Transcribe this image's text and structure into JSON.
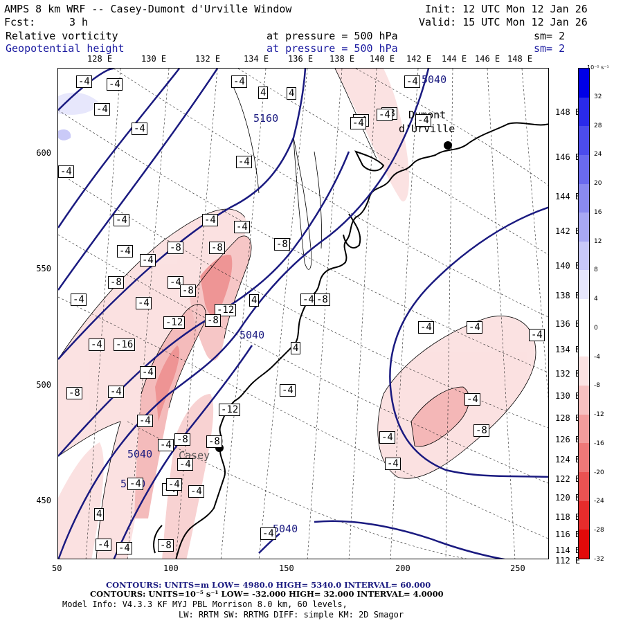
{
  "header": {
    "title": "AMPS 8 km WRF -- Casey-Dumont d'Urville Window",
    "init": "Init: 12 UTC Mon 12 Jan 26",
    "fcst_label": "Fcst:",
    "fcst_value": "3 h",
    "valid": "Valid: 15 UTC Mon 12 Jan 26",
    "field1_name": "Relative vorticity",
    "field1_level": "at pressure =  500 hPa",
    "field1_sm": "sm= 2",
    "field2_name": "Geopotential height",
    "field2_level": "at pressure =  500 hPa",
    "field2_sm": "sm= 2"
  },
  "top_lon_labels": [
    "128 E",
    "130 E",
    "132 E",
    "134 E",
    "136 E",
    "138 E",
    "140 E",
    "142 E",
    "144 E",
    "146 E",
    "148 E"
  ],
  "right_lon_labels": [
    "148 E",
    "146 E",
    "144 E",
    "142 E",
    "140 E",
    "138 E",
    "136 E",
    "134 E",
    "132 E",
    "130 E",
    "128 E",
    "126 E",
    "124 E",
    "122 E",
    "120 E",
    "118 E",
    "116 E",
    "114 E",
    "112 E"
  ],
  "y_ticks": [
    "600",
    "550",
    "500",
    "450"
  ],
  "x_ticks": [
    "50",
    "100",
    "150",
    "200",
    "250"
  ],
  "stations": [
    {
      "name_line1": "Dumont",
      "name_line2": "d'Urville"
    },
    {
      "name_line1": "Casey",
      "name_line2": ""
    }
  ],
  "height_contour_labels": [
    "5040",
    "5160",
    "5040",
    "5040",
    "5040",
    "5040"
  ],
  "vort_labels": [
    "-4",
    "-4",
    "-4",
    "-4",
    "4",
    "4",
    "-4",
    "-8",
    "-4",
    "-4",
    "-4",
    "-4",
    "-4",
    "-4",
    "-4",
    "-4",
    "-8",
    "-8",
    "-4",
    "-8",
    "-4",
    "-4",
    "-8",
    "-4",
    "-8",
    "-4",
    "-12",
    "-12",
    "4",
    "-4",
    "-8",
    "-4",
    "-16",
    "-4",
    "-8",
    "-4",
    "-4",
    "-4",
    "-12",
    "-8",
    "-8",
    "-8",
    "-4",
    "-4",
    "-4",
    "-4",
    "-4",
    "-8",
    "-4",
    "-4",
    "-4",
    "-4",
    "-4",
    "-4",
    "4",
    "-4",
    "-4",
    "-8",
    "-4",
    "-4",
    "-4",
    "4",
    "-8",
    "-4"
  ],
  "colorbar": {
    "unit": "10⁻⁵ s⁻¹",
    "labels": [
      "32",
      "28",
      "24",
      "20",
      "16",
      "12",
      "8",
      "4",
      "0",
      "-4",
      "-8",
      "-12",
      "-16",
      "-20",
      "-24",
      "-28",
      "-32"
    ],
    "colors": [
      "#0000e6",
      "#2a2aea",
      "#4c4cec",
      "#6a6aee",
      "#8a8af0",
      "#a8a8f4",
      "#c8c8f8",
      "#e6e6fc",
      "#ffffff",
      "#ffffff",
      "#fbe2e2",
      "#f6c0c0",
      "#f29c9c",
      "#ee7878",
      "#ea5252",
      "#e62c2c",
      "#e20a0a"
    ]
  },
  "footer": {
    "line1": "CONTOURS:  UNITS=m  LOW=  4980.0        HIGH=  5340.0        INTERVAL=   60.000",
    "line2": "CONTOURS:  UNITS=10⁻⁵ s⁻¹   LOW= -32.000        HIGH=  32.000        INTERVAL=   4.0000",
    "line3": "Model Info: V4.3.3   KF      MYJ PBL  Morrison         8.0 km,  60 levels,",
    "line4": "LW: RRTM SW: RRTMG   DIFF: simple KM: 2D Smagor"
  }
}
